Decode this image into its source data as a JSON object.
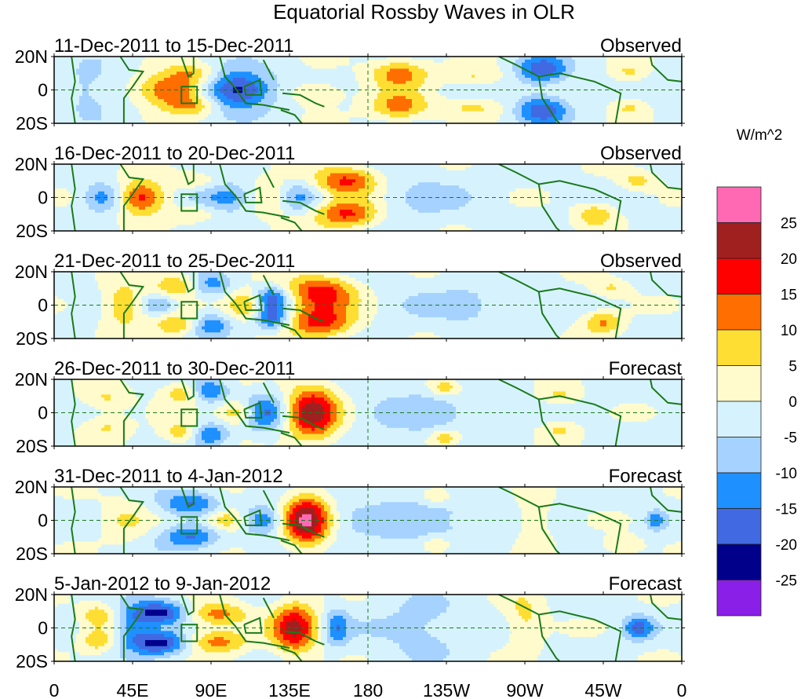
{
  "chart_data": {
    "type": "heatmap",
    "title": "Equatorial Rossby Waves in OLR",
    "colorbar": {
      "units": "W/m^2",
      "tick_labels": [
        "25",
        "20",
        "15",
        "10",
        "5",
        "0",
        "-5",
        "-10",
        "-15",
        "-20",
        "-25"
      ],
      "levels": [
        -25,
        -20,
        -15,
        -10,
        -5,
        0,
        5,
        10,
        15,
        20,
        25
      ],
      "colors": [
        "#8a1fe8",
        "#00008b",
        "#4169e1",
        "#1e90ff",
        "#a6d2ff",
        "#d6f3fd",
        "#fffbcc",
        "#ffde33",
        "#ff6e00",
        "#ff0000",
        "#a02020",
        "#ff69b4"
      ]
    },
    "x_axis": {
      "range": [
        0,
        360
      ],
      "ticks": [
        0,
        45,
        90,
        135,
        180,
        225,
        270,
        315,
        360
      ],
      "tick_labels": [
        "0",
        "45E",
        "90E",
        "135E",
        "180",
        "135W",
        "90W",
        "45W",
        "0"
      ]
    },
    "y_axis": {
      "range": [
        -20,
        20
      ],
      "ticks": [
        20,
        0,
        -20
      ],
      "tick_labels": [
        "20N",
        "0",
        "20S"
      ]
    },
    "panels": [
      {
        "period": "11-Dec-2011 to 15-Dec-2011",
        "status": "Observed",
        "centers": [
          {
            "lon": 68,
            "lat": 0,
            "amp": 19,
            "wx": 14,
            "wy": 7
          },
          {
            "lon": 80,
            "lat": 10,
            "amp": 8,
            "wx": 10,
            "wy": 4
          },
          {
            "lon": 80,
            "lat": -10,
            "amp": 9,
            "wx": 10,
            "wy": 4
          },
          {
            "lon": 105,
            "lat": 0,
            "amp": -22,
            "wx": 14,
            "wy": 8
          },
          {
            "lon": 150,
            "lat": -2,
            "amp": 7,
            "wx": 12,
            "wy": 5
          },
          {
            "lon": 198,
            "lat": 10,
            "amp": 14,
            "wx": 12,
            "wy": 6
          },
          {
            "lon": 198,
            "lat": -10,
            "amp": 14,
            "wx": 12,
            "wy": 6
          },
          {
            "lon": 240,
            "lat": 8,
            "amp": 7,
            "wx": 12,
            "wy": 4
          },
          {
            "lon": 240,
            "lat": -10,
            "amp": 7,
            "wx": 12,
            "wy": 4
          },
          {
            "lon": 280,
            "lat": 12,
            "amp": -17,
            "wx": 10,
            "wy": 6
          },
          {
            "lon": 280,
            "lat": -12,
            "amp": -17,
            "wx": 10,
            "wy": 6
          },
          {
            "lon": 330,
            "lat": 10,
            "amp": 7,
            "wx": 7,
            "wy": 4
          },
          {
            "lon": 330,
            "lat": -10,
            "amp": 7,
            "wx": 7,
            "wy": 4
          },
          {
            "lon": 20,
            "lat": 0,
            "amp": -6,
            "wx": 15,
            "wy": 10
          }
        ]
      },
      {
        "period": "16-Dec-2011 to 20-Dec-2011",
        "status": "Observed",
        "centers": [
          {
            "lon": 50,
            "lat": 0,
            "amp": 20,
            "wx": 10,
            "wy": 7
          },
          {
            "lon": 28,
            "lat": 0,
            "amp": -12,
            "wx": 8,
            "wy": 6
          },
          {
            "lon": 80,
            "lat": 10,
            "amp": 7,
            "wx": 10,
            "wy": 4
          },
          {
            "lon": 80,
            "lat": -10,
            "amp": 7,
            "wx": 10,
            "wy": 4
          },
          {
            "lon": 100,
            "lat": 0,
            "amp": -14,
            "wx": 16,
            "wy": 6
          },
          {
            "lon": 122,
            "lat": 0,
            "amp": 13,
            "wx": 10,
            "wy": 7
          },
          {
            "lon": 140,
            "lat": 0,
            "amp": -10,
            "wx": 8,
            "wy": 6
          },
          {
            "lon": 168,
            "lat": 10,
            "amp": 18,
            "wx": 13,
            "wy": 6
          },
          {
            "lon": 168,
            "lat": -10,
            "amp": 18,
            "wx": 13,
            "wy": 6
          },
          {
            "lon": 210,
            "lat": 0,
            "amp": -5,
            "wx": 20,
            "wy": 10
          },
          {
            "lon": 310,
            "lat": -10,
            "amp": 10,
            "wx": 8,
            "wy": 5
          },
          {
            "lon": 335,
            "lat": 10,
            "amp": 8,
            "wx": 8,
            "wy": 4
          }
        ]
      },
      {
        "period": "21-Dec-2011 to 25-Dec-2011",
        "status": "Observed",
        "centers": [
          {
            "lon": 40,
            "lat": 0,
            "amp": 12,
            "wx": 8,
            "wy": 9
          },
          {
            "lon": 70,
            "lat": 12,
            "amp": 12,
            "wx": 9,
            "wy": 5
          },
          {
            "lon": 70,
            "lat": -12,
            "amp": 12,
            "wx": 9,
            "wy": 5
          },
          {
            "lon": 60,
            "lat": 0,
            "amp": -10,
            "wx": 6,
            "wy": 4
          },
          {
            "lon": 90,
            "lat": 12,
            "amp": -10,
            "wx": 8,
            "wy": 5
          },
          {
            "lon": 90,
            "lat": -12,
            "amp": -12,
            "wx": 8,
            "wy": 5
          },
          {
            "lon": 110,
            "lat": 0,
            "amp": 13,
            "wx": 8,
            "wy": 6
          },
          {
            "lon": 125,
            "lat": 4,
            "amp": -17,
            "wx": 7,
            "wy": 5
          },
          {
            "lon": 125,
            "lat": -8,
            "amp": -17,
            "wx": 7,
            "wy": 5
          },
          {
            "lon": 153,
            "lat": 8,
            "amp": 19,
            "wx": 14,
            "wy": 7
          },
          {
            "lon": 153,
            "lat": -10,
            "amp": 19,
            "wx": 14,
            "wy": 7
          },
          {
            "lon": 240,
            "lat": 0,
            "amp": -5,
            "wx": 30,
            "wy": 10
          },
          {
            "lon": 315,
            "lat": -10,
            "amp": 12,
            "wx": 8,
            "wy": 5
          },
          {
            "lon": 320,
            "lat": 10,
            "amp": 7,
            "wx": 8,
            "wy": 4
          }
        ]
      },
      {
        "period": "26-Dec-2011 to 30-Dec-2011",
        "status": "Forecast",
        "centers": [
          {
            "lon": 75,
            "lat": 12,
            "amp": 12,
            "wx": 9,
            "wy": 5
          },
          {
            "lon": 75,
            "lat": -12,
            "amp": 12,
            "wx": 9,
            "wy": 5
          },
          {
            "lon": 88,
            "lat": 13,
            "amp": -16,
            "wx": 8,
            "wy": 5
          },
          {
            "lon": 88,
            "lat": -13,
            "amp": -16,
            "wx": 8,
            "wy": 5
          },
          {
            "lon": 105,
            "lat": 0,
            "amp": 12,
            "wx": 8,
            "wy": 5
          },
          {
            "lon": 122,
            "lat": 0,
            "amp": -15,
            "wx": 9,
            "wy": 8
          },
          {
            "lon": 148,
            "lat": 0,
            "amp": 24,
            "wx": 11,
            "wy": 12
          },
          {
            "lon": 30,
            "lat": 8,
            "amp": 7,
            "wx": 10,
            "wy": 5
          },
          {
            "lon": 30,
            "lat": -8,
            "amp": 7,
            "wx": 10,
            "wy": 5
          },
          {
            "lon": 215,
            "lat": 0,
            "amp": -6,
            "wx": 25,
            "wy": 12
          },
          {
            "lon": 225,
            "lat": 15,
            "amp": 11,
            "wx": 7,
            "wy": 4
          },
          {
            "lon": 225,
            "lat": -15,
            "amp": 11,
            "wx": 7,
            "wy": 4
          },
          {
            "lon": 290,
            "lat": 10,
            "amp": 7,
            "wx": 8,
            "wy": 4
          },
          {
            "lon": 290,
            "lat": -10,
            "amp": 7,
            "wx": 8,
            "wy": 4
          }
        ]
      },
      {
        "period": "31-Dec-2011 to 4-Jan-2012",
        "status": "Forecast",
        "centers": [
          {
            "lon": 78,
            "lat": 10,
            "amp": -14,
            "wx": 12,
            "wy": 5
          },
          {
            "lon": 78,
            "lat": -10,
            "amp": -14,
            "wx": 12,
            "wy": 5
          },
          {
            "lon": 98,
            "lat": 0,
            "amp": 12,
            "wx": 8,
            "wy": 5
          },
          {
            "lon": 120,
            "lat": 0,
            "amp": -12,
            "wx": 7,
            "wy": 6
          },
          {
            "lon": 145,
            "lat": 0,
            "amp": 27,
            "wx": 9,
            "wy": 11
          },
          {
            "lon": 40,
            "lat": 0,
            "amp": 6,
            "wx": 10,
            "wy": 10
          },
          {
            "lon": 210,
            "lat": 0,
            "amp": -7,
            "wx": 30,
            "wy": 12
          },
          {
            "lon": 220,
            "lat": 15,
            "amp": 10,
            "wx": 7,
            "wy": 4
          },
          {
            "lon": 220,
            "lat": -15,
            "amp": 10,
            "wx": 7,
            "wy": 4
          },
          {
            "lon": 275,
            "lat": 0,
            "amp": 7,
            "wx": 7,
            "wy": 12
          },
          {
            "lon": 345,
            "lat": 0,
            "amp": -12,
            "wx": 4,
            "wy": 4
          },
          {
            "lon": 325,
            "lat": -15,
            "amp": 8,
            "wx": 8,
            "wy": 4
          }
        ]
      },
      {
        "period": "5-Jan-2012 to 9-Jan-2012",
        "status": "Forecast",
        "centers": [
          {
            "lon": 60,
            "lat": 9,
            "amp": -22,
            "wx": 13,
            "wy": 5
          },
          {
            "lon": 60,
            "lat": -9,
            "amp": -22,
            "wx": 13,
            "wy": 5
          },
          {
            "lon": 45,
            "lat": 0,
            "amp": -10,
            "wx": 6,
            "wy": 5
          },
          {
            "lon": 92,
            "lat": 8,
            "amp": 14,
            "wx": 14,
            "wy": 5
          },
          {
            "lon": 92,
            "lat": -8,
            "amp": 14,
            "wx": 14,
            "wy": 5
          },
          {
            "lon": 138,
            "lat": 0,
            "amp": 22,
            "wx": 9,
            "wy": 11
          },
          {
            "lon": 25,
            "lat": 8,
            "amp": 10,
            "wx": 7,
            "wy": 5
          },
          {
            "lon": 25,
            "lat": -8,
            "amp": 10,
            "wx": 7,
            "wy": 5
          },
          {
            "lon": 162,
            "lat": 0,
            "amp": -12,
            "wx": 5,
            "wy": 8
          },
          {
            "lon": 210,
            "lat": 0,
            "amp": -6,
            "wx": 20,
            "wy": 12
          },
          {
            "lon": 270,
            "lat": 5,
            "amp": 8,
            "wx": 8,
            "wy": 12
          },
          {
            "lon": 335,
            "lat": 0,
            "amp": -15,
            "wx": 6,
            "wy": 5
          }
        ]
      }
    ]
  }
}
